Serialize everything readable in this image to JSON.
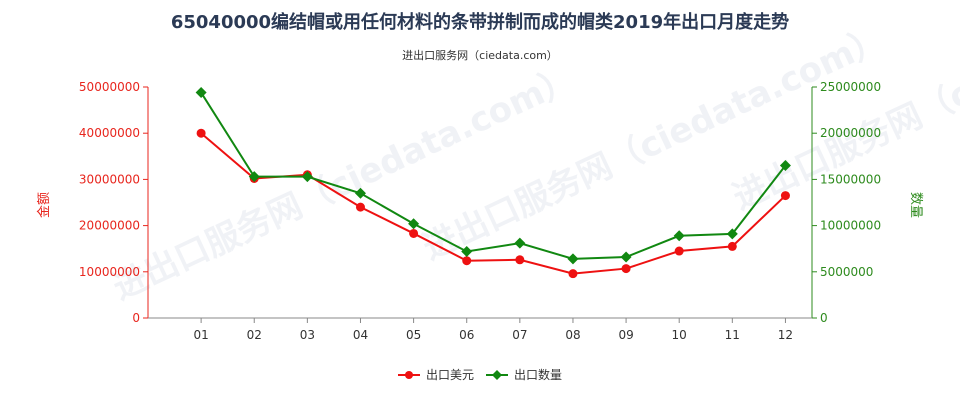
{
  "title": "65040000编结帽或用任何材料的条带拼制而成的帽类2019年出口月度走势",
  "subtitle": "进出口服务网（ciedata.com）",
  "watermark": "进出口服务网（ciedata.com）",
  "colors": {
    "left_axis": "#e8261e",
    "right_axis": "#2e8b1e",
    "series_left": "#ee1111",
    "series_right": "#118811"
  },
  "chart_data": {
    "type": "line",
    "title": "65040000编结帽或用任何材料的条带拼制而成的帽类2019年出口月度走势",
    "x": [
      "01",
      "02",
      "03",
      "04",
      "05",
      "06",
      "07",
      "08",
      "09",
      "10",
      "11",
      "12"
    ],
    "ylabel_left": "金额",
    "ylabel_right": "数量",
    "ylim_left": [
      0,
      50000000
    ],
    "ylim_right": [
      0,
      25000000
    ],
    "yticks_left": [
      "0",
      "10000000",
      "20000000",
      "30000000",
      "40000000",
      "50000000"
    ],
    "yticks_right": [
      "0",
      "5000000",
      "10000000",
      "15000000",
      "20000000",
      "25000000"
    ],
    "grid": false,
    "legend": "bottom",
    "series": [
      {
        "name": "出口美元",
        "axis": "left",
        "values": [
          40000000,
          30200000,
          31000000,
          24000000,
          18300000,
          12400000,
          12600000,
          9600000,
          10700000,
          14500000,
          15500000,
          26500000
        ]
      },
      {
        "name": "出口数量",
        "axis": "right",
        "values": [
          24400000,
          15300000,
          15300000,
          13500000,
          10200000,
          7200000,
          8100000,
          6400000,
          6600000,
          8900000,
          9100000,
          16500000
        ]
      }
    ]
  }
}
